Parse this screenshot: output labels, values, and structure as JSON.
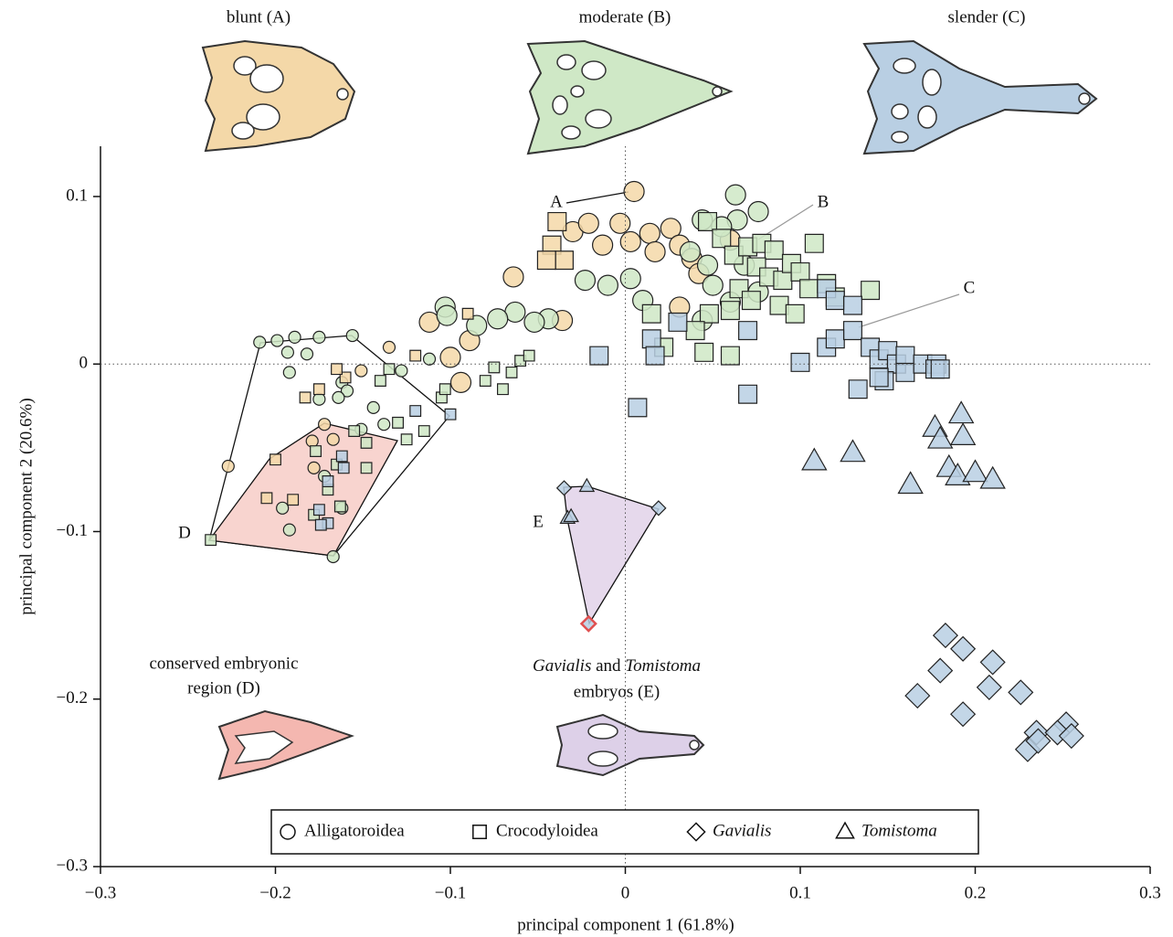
{
  "chart_data": {
    "type": "scatter",
    "xlabel": "principal component 1 (61.8%)",
    "ylabel": "principal component 2 (20.6%)",
    "xlim": [
      -0.3,
      0.3
    ],
    "ylim": [
      -0.3,
      0.13
    ],
    "xticks": [
      {
        "value": -0.3,
        "label": "−0.3"
      },
      {
        "value": -0.2,
        "label": "−0.2"
      },
      {
        "value": -0.1,
        "label": "−0.1"
      },
      0,
      0.1,
      0.2,
      0.3
    ],
    "yticks": [
      {
        "value": -0.3,
        "label": "−0.3"
      },
      {
        "value": -0.2,
        "label": "−0.2"
      },
      {
        "value": -0.1,
        "label": "−0.1"
      },
      0,
      0.1
    ],
    "zero_lines": true,
    "legend": "bottom",
    "panel_titles": [
      "blunt (A)",
      "moderate (B)",
      "slender (C)"
    ],
    "region_d_title": [
      "conserved embryonic",
      "region (D)"
    ],
    "region_e_title": {
      "italic_1": "Gavialis",
      "middle": " and ",
      "italic_2": "Tomistoma",
      "line2": "embryos (E)"
    },
    "annotations": [
      "A",
      "B",
      "C",
      "D",
      "E"
    ],
    "series": [
      {
        "name": "Alligatoroidea",
        "marker": "circle",
        "size": "large",
        "color": "#f4d8a8",
        "x": [
          0.005,
          -0.03,
          -0.021,
          -0.003,
          -0.013,
          0.003,
          0.014,
          0.026,
          0.031,
          0.038,
          0.042,
          0.017,
          -0.064,
          0.031,
          -0.112,
          -0.036,
          -0.089,
          -0.1,
          -0.094,
          0.06
        ],
        "values": [
          0.103,
          0.079,
          0.084,
          0.084,
          0.071,
          0.073,
          0.078,
          0.081,
          0.071,
          0.063,
          0.054,
          0.067,
          0.052,
          0.034,
          0.025,
          0.026,
          0.014,
          0.004,
          -0.011,
          0.074
        ]
      },
      {
        "name": "Alligatoroidea",
        "marker": "circle",
        "size": "large",
        "color": "#cfe8c6",
        "x": [
          0.063,
          0.076,
          0.044,
          0.064,
          0.055,
          0.037,
          0.047,
          0.068,
          -0.023,
          -0.01,
          0.003,
          0.076,
          0.06,
          0.05,
          0.01,
          0.044,
          -0.044,
          -0.063,
          -0.073,
          -0.052,
          -0.085,
          -0.103,
          -0.102
        ],
        "values": [
          0.101,
          0.091,
          0.086,
          0.086,
          0.082,
          0.067,
          0.059,
          0.059,
          0.05,
          0.047,
          0.051,
          0.043,
          0.037,
          0.047,
          0.038,
          0.026,
          0.027,
          0.031,
          0.027,
          0.025,
          0.023,
          0.034,
          0.029
        ]
      },
      {
        "name": "Alligatoroidea",
        "marker": "circle",
        "size": "small",
        "color": "#f4d8a8",
        "x": [
          -0.135,
          -0.151,
          -0.227,
          -0.172,
          -0.179,
          -0.167,
          -0.178
        ],
        "values": [
          0.01,
          -0.004,
          -0.061,
          -0.036,
          -0.046,
          -0.045,
          -0.062
        ]
      },
      {
        "name": "Alligatoroidea",
        "marker": "circle",
        "size": "small",
        "color": "#cfe8c6",
        "x": [
          -0.209,
          -0.199,
          -0.189,
          -0.175,
          -0.156,
          -0.193,
          -0.182,
          -0.192,
          -0.162,
          -0.159,
          -0.144,
          -0.151,
          -0.175,
          -0.164,
          -0.172,
          -0.162,
          -0.196,
          -0.192,
          -0.167,
          -0.112,
          -0.128,
          -0.138
        ],
        "values": [
          0.013,
          0.014,
          0.016,
          0.016,
          0.017,
          0.007,
          0.006,
          -0.005,
          -0.011,
          -0.016,
          -0.026,
          -0.039,
          -0.021,
          -0.02,
          -0.067,
          -0.086,
          -0.086,
          -0.099,
          -0.115,
          0.003,
          -0.004,
          -0.036
        ]
      },
      {
        "name": "Crocodyloidea",
        "marker": "square",
        "size": "large",
        "color": "#f4d8a8",
        "x": [
          -0.039,
          -0.042,
          -0.035,
          -0.045
        ],
        "values": [
          0.085,
          0.071,
          0.062,
          0.062
        ]
      },
      {
        "name": "Crocodyloidea",
        "marker": "square",
        "size": "large",
        "color": "#cfe8c6",
        "x": [
          0.047,
          0.055,
          0.062,
          0.07,
          0.078,
          0.085,
          0.075,
          0.082,
          0.09,
          0.095,
          0.1,
          0.105,
          0.108,
          0.115,
          0.12,
          0.14,
          0.065,
          0.072,
          0.088,
          0.097,
          0.06,
          0.048,
          0.04,
          0.015,
          0.022,
          0.045,
          0.06
        ],
        "values": [
          0.085,
          0.075,
          0.065,
          0.07,
          0.072,
          0.068,
          0.058,
          0.052,
          0.05,
          0.06,
          0.055,
          0.045,
          0.072,
          0.048,
          0.04,
          0.044,
          0.045,
          0.038,
          0.035,
          0.03,
          0.032,
          0.03,
          0.02,
          0.03,
          0.01,
          0.007,
          0.005
        ]
      },
      {
        "name": "Crocodyloidea",
        "marker": "square",
        "size": "small",
        "color": "#f4d8a8",
        "x": [
          -0.2,
          -0.183,
          -0.175,
          -0.16,
          -0.165,
          -0.19,
          -0.205,
          -0.09,
          -0.12
        ],
        "values": [
          -0.057,
          -0.02,
          -0.015,
          -0.008,
          -0.003,
          -0.081,
          -0.08,
          0.03,
          0.005
        ]
      },
      {
        "name": "Crocodyloidea",
        "marker": "square",
        "size": "small",
        "color": "#cfe8c6",
        "x": [
          -0.237,
          -0.105,
          -0.103,
          -0.13,
          -0.125,
          -0.115,
          -0.08,
          -0.075,
          -0.07,
          -0.065,
          -0.06,
          -0.055,
          -0.14,
          -0.135,
          -0.155,
          -0.148,
          -0.165,
          -0.17,
          -0.163,
          -0.178,
          -0.148,
          -0.177
        ],
        "values": [
          -0.105,
          -0.02,
          -0.015,
          -0.035,
          -0.045,
          -0.04,
          -0.01,
          -0.002,
          -0.015,
          -0.005,
          0.002,
          0.005,
          -0.01,
          -0.003,
          -0.04,
          -0.047,
          -0.06,
          -0.075,
          -0.085,
          -0.09,
          -0.062,
          -0.052
        ]
      },
      {
        "name": "Crocodyloidea",
        "marker": "square",
        "size": "large",
        "color": "#b9cfe3",
        "x": [
          -0.015,
          0.015,
          0.017,
          0.007,
          0.07,
          0.1,
          0.115,
          0.12,
          0.13,
          0.115,
          0.12,
          0.13,
          0.14,
          0.145,
          0.15,
          0.155,
          0.16,
          0.148,
          0.16,
          0.133,
          0.145,
          0.17,
          0.178,
          0.177,
          0.18,
          0.07,
          0.03
        ],
        "values": [
          0.005,
          0.015,
          0.005,
          -0.026,
          -0.018,
          0.001,
          0.01,
          0.015,
          0.02,
          0.045,
          0.038,
          0.035,
          0.01,
          0.003,
          0.008,
          0.0,
          0.005,
          -0.01,
          -0.005,
          -0.015,
          -0.008,
          0.0,
          0.0,
          -0.003,
          -0.003,
          0.02,
          0.025
        ]
      },
      {
        "name": "Crocodyloidea",
        "marker": "square",
        "size": "small",
        "color": "#b9cfe3",
        "x": [
          -0.1,
          -0.12,
          -0.162,
          -0.161,
          -0.17,
          -0.175,
          -0.174,
          -0.17
        ],
        "values": [
          -0.03,
          -0.028,
          -0.055,
          -0.062,
          -0.095,
          -0.087,
          -0.096,
          -0.07
        ]
      },
      {
        "name": "Gavialis",
        "italic": true,
        "marker": "diamond",
        "size": "large",
        "color": "#b9cfe3",
        "x": [
          0.183,
          0.193,
          0.18,
          0.21,
          0.167,
          0.208,
          0.193,
          0.226,
          0.235,
          0.23,
          0.252,
          0.247,
          0.255,
          0.236
        ],
        "values": [
          -0.162,
          -0.17,
          -0.183,
          -0.178,
          -0.198,
          -0.193,
          -0.209,
          -0.196,
          -0.22,
          -0.23,
          -0.215,
          -0.22,
          -0.222,
          -0.225
        ]
      },
      {
        "name": "Gavialis",
        "italic": true,
        "marker": "diamond",
        "size": "small",
        "color": "#b9cfe3",
        "x": [
          -0.035,
          0.019
        ],
        "values": [
          -0.074,
          -0.086
        ]
      },
      {
        "name": "Gavialis",
        "italic": true,
        "marker": "diamond",
        "size": "small",
        "color": "#b9cfe3",
        "edgecolor": "#e05050",
        "x": [
          -0.021
        ],
        "values": [
          -0.155
        ]
      },
      {
        "name": "Tomistoma",
        "italic": true,
        "marker": "triangle",
        "size": "large",
        "color": "#b9cfe3",
        "x": [
          0.192,
          0.177,
          0.193,
          0.18,
          0.13,
          0.108,
          0.185,
          0.19,
          0.2,
          0.21,
          0.163
        ],
        "values": [
          -0.03,
          -0.038,
          -0.043,
          -0.045,
          -0.053,
          -0.058,
          -0.062,
          -0.067,
          -0.065,
          -0.069,
          -0.072
        ]
      },
      {
        "name": "Tomistoma",
        "italic": true,
        "marker": "triangle",
        "size": "small",
        "color": "#b9cfe3",
        "x": [
          -0.022,
          -0.033,
          -0.031
        ],
        "values": [
          -0.073,
          -0.092,
          -0.091
        ]
      }
    ]
  }
}
